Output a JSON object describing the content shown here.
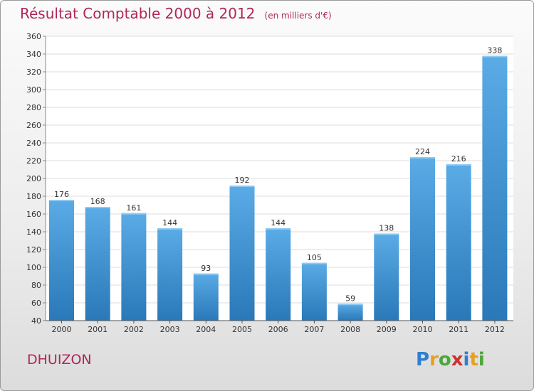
{
  "title": "Résultat Comptable 2000 à 2012",
  "subtitle": "(en milliers d'€)",
  "commune": "DHUIZON",
  "logo": {
    "letters": [
      "P",
      "r",
      "o",
      "x",
      "i",
      "t",
      "i"
    ],
    "colors": [
      "#2f7fd0",
      "#e8a020",
      "#4aa838",
      "#d03030",
      "#2f7fd0",
      "#e8a020",
      "#4aa838"
    ]
  },
  "chart_data": {
    "type": "bar",
    "categories": [
      "2000",
      "2001",
      "2002",
      "2003",
      "2004",
      "2005",
      "2006",
      "2007",
      "2008",
      "2009",
      "2010",
      "2011",
      "2012"
    ],
    "values": [
      176,
      168,
      161,
      144,
      93,
      192,
      144,
      105,
      59,
      138,
      224,
      216,
      338
    ],
    "ylim": [
      40,
      360
    ],
    "yticks": [
      40,
      60,
      80,
      100,
      120,
      140,
      160,
      180,
      200,
      220,
      240,
      260,
      280,
      300,
      320,
      340,
      360
    ],
    "grid": true,
    "bar_color_top": "#5aabe6",
    "bar_color_bottom": "#2a78b8"
  }
}
